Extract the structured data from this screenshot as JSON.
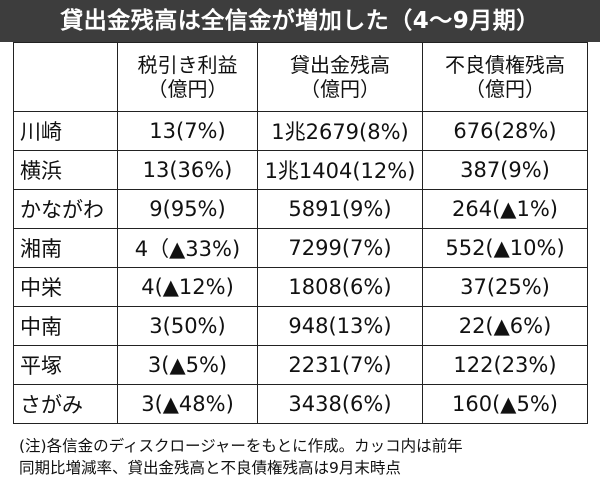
{
  "title": "貸出金残高は全信金が増加した（4～9月期）",
  "columns": [
    {
      "line1": "税引き利益",
      "line2": "（億円）"
    },
    {
      "line1": "貸出金残高",
      "line2": "（億円）"
    },
    {
      "line1": "不良債権残高",
      "line2": "（億円）"
    }
  ],
  "rows": [
    {
      "name": "川崎",
      "profit": "13(7%)",
      "loans": "1兆2679(8%)",
      "bad_debt": "676(28%)"
    },
    {
      "name": "横浜",
      "profit": "13(36%)",
      "loans": "1兆1404(12%)",
      "bad_debt": "387(9%)"
    },
    {
      "name": "かながわ",
      "profit": "9(95%)",
      "loans": "5891(9%)",
      "bad_debt": "264(▲1%)"
    },
    {
      "name": "湘南",
      "profit": "4（▲33%)",
      "loans": "7299(7%)",
      "bad_debt": "552(▲10%)"
    },
    {
      "name": "中栄",
      "profit": "4(▲12%)",
      "loans": "1808(6%)",
      "bad_debt": "37(25%)"
    },
    {
      "name": "中南",
      "profit": "3(50%)",
      "loans": "948(13%)",
      "bad_debt": "22(▲6%)"
    },
    {
      "name": "平塚",
      "profit": "3(▲5%)",
      "loans": "2231(7%)",
      "bad_debt": "122(23%)"
    },
    {
      "name": "さがみ",
      "profit": "3(▲48%)",
      "loans": "3438(6%)",
      "bad_debt": "160(▲5%)"
    }
  ],
  "note": {
    "line1": "(注)各信金のディスクロージャーをもとに作成。カッコ内は前年",
    "line2": "同期比増減率、貸出金残高と不良債権残高は9月末時点"
  }
}
